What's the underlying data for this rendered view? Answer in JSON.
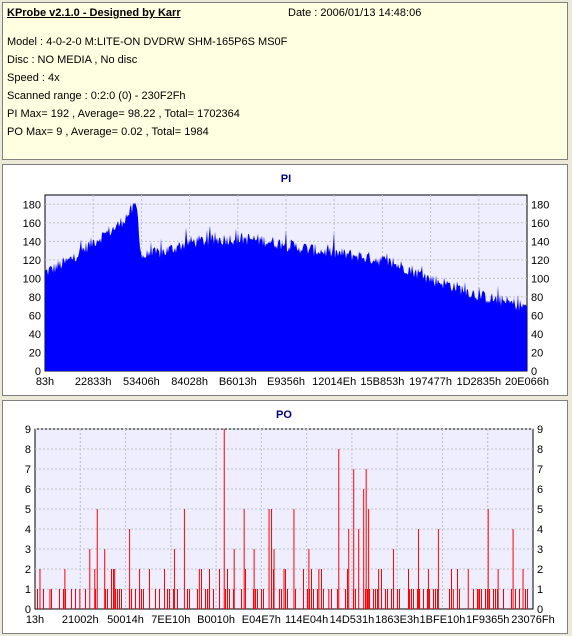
{
  "header": {
    "app_title": "KProbe v2.1.0 - Designed by Karr",
    "date": "Date : 2006/01/13 14:48:06",
    "lines": [
      "Model : 4-0-2-0 M:LITE-ON DVDRW SHM-165P6S MS0F",
      "Disc : NO MEDIA , No disc",
      "Speed : 4x",
      "Scanned range : 0:2:0 (0) - 230F2Fh",
      "PI Max= 192 , Average= 98.22 , Total= 1702364",
      "PO Max= 9 , Average= 0.02 , Total= 1984"
    ]
  },
  "colors": {
    "pi_fill": "#0000ff",
    "po_bar": "#ff0000",
    "plot_bg": "#eeeeff",
    "grid": "#c0c0c0",
    "title": "#000080",
    "info_bg": "#ffffe1"
  },
  "chart_data": [
    {
      "type": "area",
      "title": "PI",
      "ylim": [
        0,
        190
      ],
      "yticks": [
        0,
        20,
        40,
        60,
        80,
        100,
        120,
        140,
        160,
        180
      ],
      "xtick_labels": [
        "83h",
        "22833h",
        "53406h",
        "84028h",
        "B6013h",
        "E9356h",
        "12014Eh",
        "15B853h",
        "197477h",
        "1D2835h",
        "20E066h"
      ],
      "grid": true,
      "axes_on_both_sides": true,
      "profile_x": [
        0,
        0.05,
        0.1,
        0.15,
        0.18,
        0.19,
        0.2,
        0.25,
        0.3,
        0.35,
        0.4,
        0.45,
        0.5,
        0.55,
        0.6,
        0.65,
        0.7,
        0.75,
        0.8,
        0.85,
        0.9,
        0.95,
        1.0
      ],
      "profile_y": [
        105,
        118,
        138,
        155,
        172,
        178,
        122,
        128,
        138,
        140,
        142,
        140,
        135,
        130,
        126,
        123,
        118,
        110,
        98,
        90,
        80,
        74,
        68
      ]
    },
    {
      "type": "bar",
      "title": "PO",
      "ylim": [
        0,
        9
      ],
      "yticks": [
        0,
        1,
        2,
        3,
        4,
        5,
        6,
        7,
        8,
        9
      ],
      "xtick_labels": [
        "13h",
        "21002h",
        "50014h",
        "7EE10h",
        "B0010h",
        "E04E7h",
        "114E04h",
        "14D531h",
        "1863E3h",
        "1BFE10h",
        "1F9365h",
        "23076Fh"
      ],
      "grid": true,
      "axes_on_both_sides": true,
      "spikes": [
        {
          "x": 0.01,
          "v": 2
        },
        {
          "x": 0.03,
          "v": 1
        },
        {
          "x": 0.06,
          "v": 2
        },
        {
          "x": 0.09,
          "v": 1
        },
        {
          "x": 0.11,
          "v": 3
        },
        {
          "x": 0.12,
          "v": 2
        },
        {
          "x": 0.125,
          "v": 5
        },
        {
          "x": 0.14,
          "v": 3
        },
        {
          "x": 0.16,
          "v": 2
        },
        {
          "x": 0.19,
          "v": 4
        },
        {
          "x": 0.21,
          "v": 2
        },
        {
          "x": 0.23,
          "v": 1
        },
        {
          "x": 0.26,
          "v": 2
        },
        {
          "x": 0.28,
          "v": 3
        },
        {
          "x": 0.3,
          "v": 5
        },
        {
          "x": 0.33,
          "v": 2
        },
        {
          "x": 0.35,
          "v": 1
        },
        {
          "x": 0.38,
          "v": 9
        },
        {
          "x": 0.4,
          "v": 3
        },
        {
          "x": 0.42,
          "v": 5
        },
        {
          "x": 0.44,
          "v": 3
        },
        {
          "x": 0.47,
          "v": 5
        },
        {
          "x": 0.475,
          "v": 5
        },
        {
          "x": 0.48,
          "v": 3
        },
        {
          "x": 0.5,
          "v": 2
        },
        {
          "x": 0.52,
          "v": 5
        },
        {
          "x": 0.55,
          "v": 3
        },
        {
          "x": 0.57,
          "v": 2
        },
        {
          "x": 0.59,
          "v": 1
        },
        {
          "x": 0.61,
          "v": 8
        },
        {
          "x": 0.63,
          "v": 4
        },
        {
          "x": 0.64,
          "v": 7
        },
        {
          "x": 0.65,
          "v": 4
        },
        {
          "x": 0.66,
          "v": 6
        },
        {
          "x": 0.665,
          "v": 7
        },
        {
          "x": 0.67,
          "v": 5
        },
        {
          "x": 0.69,
          "v": 2
        },
        {
          "x": 0.72,
          "v": 3
        },
        {
          "x": 0.75,
          "v": 2
        },
        {
          "x": 0.77,
          "v": 4
        },
        {
          "x": 0.79,
          "v": 2
        },
        {
          "x": 0.81,
          "v": 4
        },
        {
          "x": 0.84,
          "v": 1
        },
        {
          "x": 0.87,
          "v": 2
        },
        {
          "x": 0.89,
          "v": 1
        },
        {
          "x": 0.91,
          "v": 5
        },
        {
          "x": 0.93,
          "v": 2
        },
        {
          "x": 0.96,
          "v": 4
        },
        {
          "x": 0.98,
          "v": 2
        }
      ],
      "baseline_density_value": 1
    }
  ]
}
